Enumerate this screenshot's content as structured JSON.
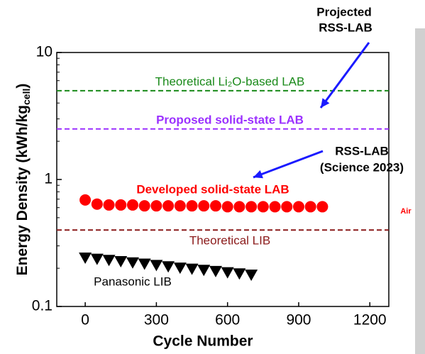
{
  "chart_data": {
    "type": "scatter",
    "xlabel": "Cycle Number",
    "ylabel": "Energy Density (kWh/kg",
    "ylabel_sub": "cell",
    "ylabel_end": ")",
    "xlim": [
      -120,
      1280
    ],
    "xticks": [
      0,
      300,
      600,
      900,
      1200
    ],
    "ylim": [
      0.1,
      10
    ],
    "yticks": [
      0.1,
      1,
      10
    ],
    "log_y": true,
    "series": [
      {
        "name": "Developed solid-state LAB",
        "color": "#ff0000",
        "marker": "circle",
        "x": [
          0,
          50,
          100,
          150,
          200,
          250,
          300,
          350,
          400,
          450,
          500,
          550,
          600,
          650,
          700,
          750,
          800,
          850,
          900,
          950,
          1000
        ],
        "values": [
          0.69,
          0.64,
          0.63,
          0.63,
          0.63,
          0.62,
          0.62,
          0.62,
          0.62,
          0.62,
          0.62,
          0.62,
          0.61,
          0.61,
          0.61,
          0.61,
          0.61,
          0.61,
          0.61,
          0.61,
          0.61
        ]
      },
      {
        "name": "Panasonic LIB",
        "color": "#000000",
        "marker": "triangle-down",
        "x": [
          0,
          50,
          100,
          150,
          200,
          250,
          300,
          350,
          400,
          450,
          500,
          550,
          600,
          650,
          700
        ],
        "values": [
          0.24,
          0.235,
          0.23,
          0.225,
          0.22,
          0.215,
          0.21,
          0.205,
          0.2,
          0.196,
          0.192,
          0.188,
          0.184,
          0.18,
          0.176
        ]
      }
    ],
    "reference_lines": [
      {
        "label": "Theoretical Li₂O-based LAB",
        "value": 5,
        "color": "#1a8a1a"
      },
      {
        "label": "Proposed solid-state LAB",
        "value": 2.5,
        "color": "#9b30ff"
      },
      {
        "label": "Theoretical LIB",
        "value": 0.4,
        "color": "#8b1a1a"
      }
    ],
    "annotations": [
      {
        "text": "Projected",
        "color": "#000000"
      },
      {
        "text": "RSS-LAB",
        "color": "#000000"
      },
      {
        "text": "RSS-LAB",
        "color": "#000000"
      },
      {
        "text": "(Science 2023)",
        "color": "#000000"
      },
      {
        "text": "Air",
        "color": "#ff0000"
      }
    ]
  }
}
